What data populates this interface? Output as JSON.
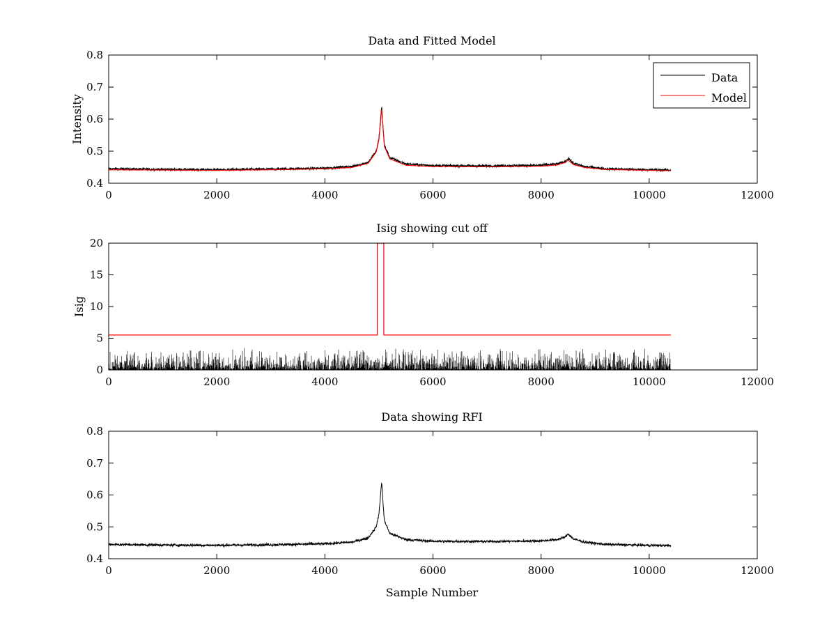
{
  "figure": {
    "background": "#ffffff"
  },
  "chart_data": [
    {
      "type": "line",
      "title": "Data and Fitted Model",
      "xlabel": "",
      "ylabel": "Intensity",
      "xlim": [
        0,
        12000
      ],
      "ylim": [
        0.4,
        0.8
      ],
      "xticks": [
        0,
        2000,
        4000,
        6000,
        8000,
        10000,
        12000
      ],
      "yticks": [
        0.4,
        0.5,
        0.6,
        0.7,
        0.8
      ],
      "grid": false,
      "legend": {
        "placement": "top-right",
        "entries": [
          {
            "label": "Data",
            "color": "#000000"
          },
          {
            "label": "Model",
            "color": "#ff0000"
          }
        ]
      },
      "series": [
        {
          "name": "Data",
          "color": "#000000",
          "noise": 0.004,
          "x": [
            0,
            1000,
            2000,
            3000,
            4000,
            4500,
            4800,
            4950,
            5000,
            5030,
            5050,
            5100,
            5200,
            5500,
            6000,
            7000,
            8000,
            8300,
            8450,
            8500,
            8600,
            8800,
            9200,
            10000,
            10400
          ],
          "y": [
            0.445,
            0.443,
            0.442,
            0.444,
            0.447,
            0.452,
            0.465,
            0.5,
            0.54,
            0.6,
            0.64,
            0.52,
            0.48,
            0.46,
            0.455,
            0.454,
            0.456,
            0.46,
            0.468,
            0.478,
            0.462,
            0.452,
            0.445,
            0.442,
            0.441
          ]
        },
        {
          "name": "Model",
          "color": "#ff0000",
          "noise": 0,
          "x": [
            0,
            1000,
            2000,
            3000,
            4000,
            4500,
            4800,
            4950,
            5000,
            5030,
            5050,
            5100,
            5200,
            5500,
            6000,
            7000,
            8000,
            8300,
            8450,
            8500,
            8600,
            8800,
            9200,
            10000,
            10400
          ],
          "y": [
            0.442,
            0.441,
            0.44,
            0.442,
            0.445,
            0.449,
            0.462,
            0.497,
            0.535,
            0.59,
            0.633,
            0.515,
            0.476,
            0.456,
            0.452,
            0.451,
            0.453,
            0.457,
            0.465,
            0.472,
            0.458,
            0.449,
            0.443,
            0.44,
            0.439
          ]
        }
      ]
    },
    {
      "type": "line",
      "title": "Isig showing cut off",
      "xlabel": "",
      "ylabel": "Isig",
      "xlim": [
        0,
        12000
      ],
      "ylim": [
        0,
        20
      ],
      "xticks": [
        0,
        2000,
        4000,
        6000,
        8000,
        10000,
        12000
      ],
      "yticks": [
        0,
        5,
        10,
        15,
        20
      ],
      "grid": false,
      "series": [
        {
          "color": "#000000",
          "kind": "noise-fill",
          "x_range": [
            0,
            10400
          ],
          "typical_max": 2.5,
          "peak_max": 3.5
        },
        {
          "color": "#ff0000",
          "kind": "step",
          "x": [
            0,
            0,
            4970,
            4970,
            5090,
            5090,
            10400
          ],
          "y": [
            5.2,
            5.5,
            5.5,
            20,
            20,
            5.5,
            5.5
          ]
        }
      ]
    },
    {
      "type": "line",
      "title": "Data showing RFI",
      "xlabel": "Sample Number",
      "ylabel": "",
      "xlim": [
        0,
        12000
      ],
      "ylim": [
        0.4,
        0.8
      ],
      "xticks": [
        0,
        2000,
        4000,
        6000,
        8000,
        10000,
        12000
      ],
      "yticks": [
        0.4,
        0.5,
        0.6,
        0.7,
        0.8
      ],
      "grid": false,
      "series": [
        {
          "color": "#000000",
          "noise": 0.004,
          "x": [
            0,
            1000,
            2000,
            3000,
            4000,
            4500,
            4800,
            4950,
            5000,
            5030,
            5050,
            5100,
            5200,
            5500,
            6000,
            7000,
            8000,
            8300,
            8450,
            8500,
            8600,
            8800,
            9200,
            10000,
            10400
          ],
          "y": [
            0.445,
            0.443,
            0.442,
            0.444,
            0.447,
            0.452,
            0.465,
            0.5,
            0.54,
            0.6,
            0.64,
            0.52,
            0.48,
            0.46,
            0.455,
            0.454,
            0.456,
            0.46,
            0.468,
            0.478,
            0.462,
            0.452,
            0.445,
            0.442,
            0.441
          ]
        }
      ]
    }
  ]
}
